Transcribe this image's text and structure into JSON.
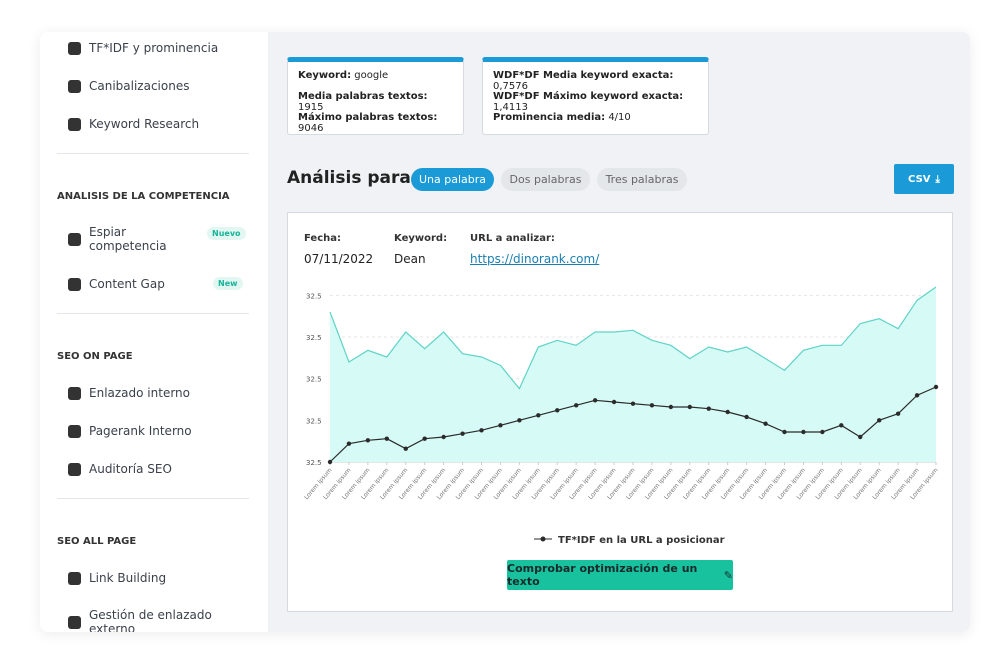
{
  "sidebar": {
    "groups": [
      {
        "items": [
          {
            "label": "TF*IDF y prominencia"
          },
          {
            "label": "Canibalizaciones"
          },
          {
            "label": "Keyword Research"
          }
        ]
      },
      {
        "title": "ANALISIS DE LA COMPETENCIA",
        "items": [
          {
            "label": "Espiar competencia",
            "badge": "Nuevo"
          },
          {
            "label": "Content Gap",
            "badge": "New"
          }
        ]
      },
      {
        "title": "SEO ON PAGE",
        "items": [
          {
            "label": "Enlazado interno"
          },
          {
            "label": "Pagerank Interno"
          },
          {
            "label": "Auditoría SEO"
          }
        ]
      },
      {
        "title": "SEO ALL PAGE",
        "items": [
          {
            "label": "Link Building"
          },
          {
            "label": "Gestión de enlazado externo"
          }
        ]
      }
    ]
  },
  "info_cards": [
    [
      {
        "label": "Keyword:",
        "value": "google"
      },
      {
        "label": "Media palabras textos:",
        "value": "1915"
      },
      {
        "label": "Máximo palabras textos:",
        "value": "9046"
      }
    ],
    [
      {
        "label": "WDF*DF Media keyword exacta:",
        "value": "0,7576"
      },
      {
        "label": "WDF*DF Máximo keyword exacta:",
        "value": "1,4113"
      },
      {
        "label": "Prominencia media:",
        "value": "4/10"
      }
    ]
  ],
  "analysis": {
    "title": "Análisis para:",
    "tabs": [
      "Una palabra",
      "Dos palabras",
      "Tres palabras"
    ],
    "active_tab": 0,
    "csv_button": "CSV"
  },
  "meta": [
    {
      "label": "Fecha:",
      "value": "07/11/2022"
    },
    {
      "label": "Keyword:",
      "value": "Dean"
    },
    {
      "label": "URL a analizar:",
      "value": "https://dinorank.com/"
    }
  ],
  "chart_data": {
    "type": "line",
    "categories": [
      "Lorem ipsum",
      "Lorem ipsum",
      "Lorem ipsum",
      "Lorem ipsum",
      "Lorem ipsum",
      "Lorem ipsum",
      "Lorem ipsum",
      "Lorem ipsum",
      "Lorem ipsum",
      "Lorem ipsum",
      "Lorem ipsum",
      "Lorem ipsum",
      "Lorem ipsum",
      "Lorem ipsum",
      "Lorem ipsum",
      "Lorem ipsum",
      "Lorem ipsum",
      "Lorem ipsum",
      "Lorem ipsum",
      "Lorem ipsum",
      "Lorem ipsum",
      "Lorem ipsum",
      "Lorem ipsum",
      "Lorem ipsum",
      "Lorem ipsum",
      "Lorem ipsum",
      "Lorem ipsum",
      "Lorem ipsum",
      "Lorem ipsum",
      "Lorem ipsum",
      "Lorem ipsum",
      "Lorem ipsum",
      "Lorem ipsum"
    ],
    "series": [
      {
        "name": "TF*IDF en la URL a posicionar",
        "color": "#2b2b2b",
        "values": [
          0,
          11,
          13,
          14,
          8,
          14,
          15,
          17,
          19,
          22,
          25,
          28,
          31,
          34,
          37,
          36,
          35,
          34,
          33,
          33,
          32,
          30,
          27,
          23,
          18,
          18,
          18,
          22,
          15,
          25,
          29,
          40,
          45
        ]
      },
      {
        "type": "area",
        "color": "#5fd3c5",
        "fill": "#d6fbf6",
        "values": [
          90,
          60,
          67,
          63,
          78,
          68,
          78,
          65,
          63,
          58,
          44,
          69,
          73,
          70,
          78,
          78,
          79,
          73,
          70,
          62,
          69,
          66,
          69,
          62,
          55,
          67,
          70,
          70,
          83,
          86,
          80,
          97,
          105
        ]
      }
    ],
    "ylim": [
      0,
      105
    ],
    "yticks": [
      {
        "value": 0,
        "label": "32.5"
      },
      {
        "value": 25,
        "label": "32.5"
      },
      {
        "value": 50,
        "label": "32.5"
      },
      {
        "value": 75,
        "label": "32.5"
      },
      {
        "value": 100,
        "label": "32.5"
      }
    ],
    "grid": true
  },
  "action_button": "Comprobar optimización de un texto"
}
